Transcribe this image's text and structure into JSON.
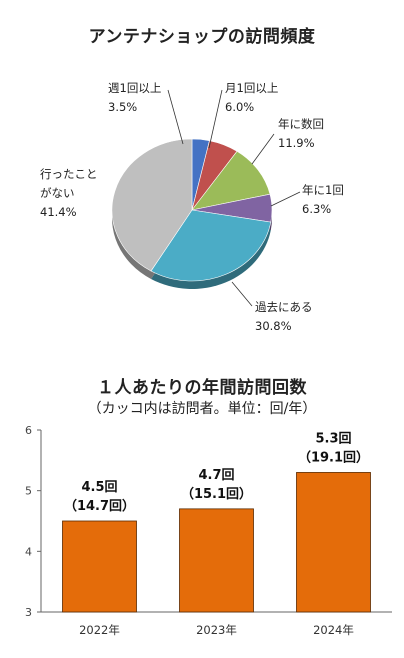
{
  "chart_data": [
    {
      "type": "pie",
      "title": "アンテナショップの訪問頻度",
      "slices": [
        {
          "name": "週1回以上",
          "pct_label": "3.5%",
          "value": 3.5,
          "color": "#4472c4"
        },
        {
          "name": "月1回以上",
          "pct_label": "6.0%",
          "value": 6.0,
          "color": "#c0504d"
        },
        {
          "name": "年に数回",
          "pct_label": "11.9%",
          "value": 11.9,
          "color": "#9bbb59"
        },
        {
          "name": "年に1回",
          "pct_label": "6.3%",
          "value": 6.3,
          "color": "#8064a2"
        },
        {
          "name": "過去にある",
          "pct_label": "30.8%",
          "value": 30.8,
          "color": "#4bacc6"
        },
        {
          "name": "行ったことがない",
          "name_lines": [
            "行ったこと",
            "がない"
          ],
          "pct_label": "41.4%",
          "value": 41.4,
          "color": "#bfbfbf"
        }
      ]
    },
    {
      "type": "bar",
      "title": "１人あたりの年間訪問回数",
      "subtitle": "（カッコ内は訪問者。単位：回/年）",
      "categories": [
        "2022年",
        "2023年",
        "2024年"
      ],
      "values": [
        4.5,
        4.7,
        5.3
      ],
      "visitor_values": [
        14.7,
        15.1,
        19.1
      ],
      "labels": [
        "4.5回",
        "4.7回",
        "5.3回"
      ],
      "visitor_labels": [
        "（14.7回）",
        "（15.1回）",
        "（19.1回）"
      ],
      "yticks": [
        "6",
        "5",
        "4",
        "3"
      ],
      "ylim": [
        3,
        6
      ],
      "grid": false,
      "bar_color": "#e46c0a"
    }
  ]
}
